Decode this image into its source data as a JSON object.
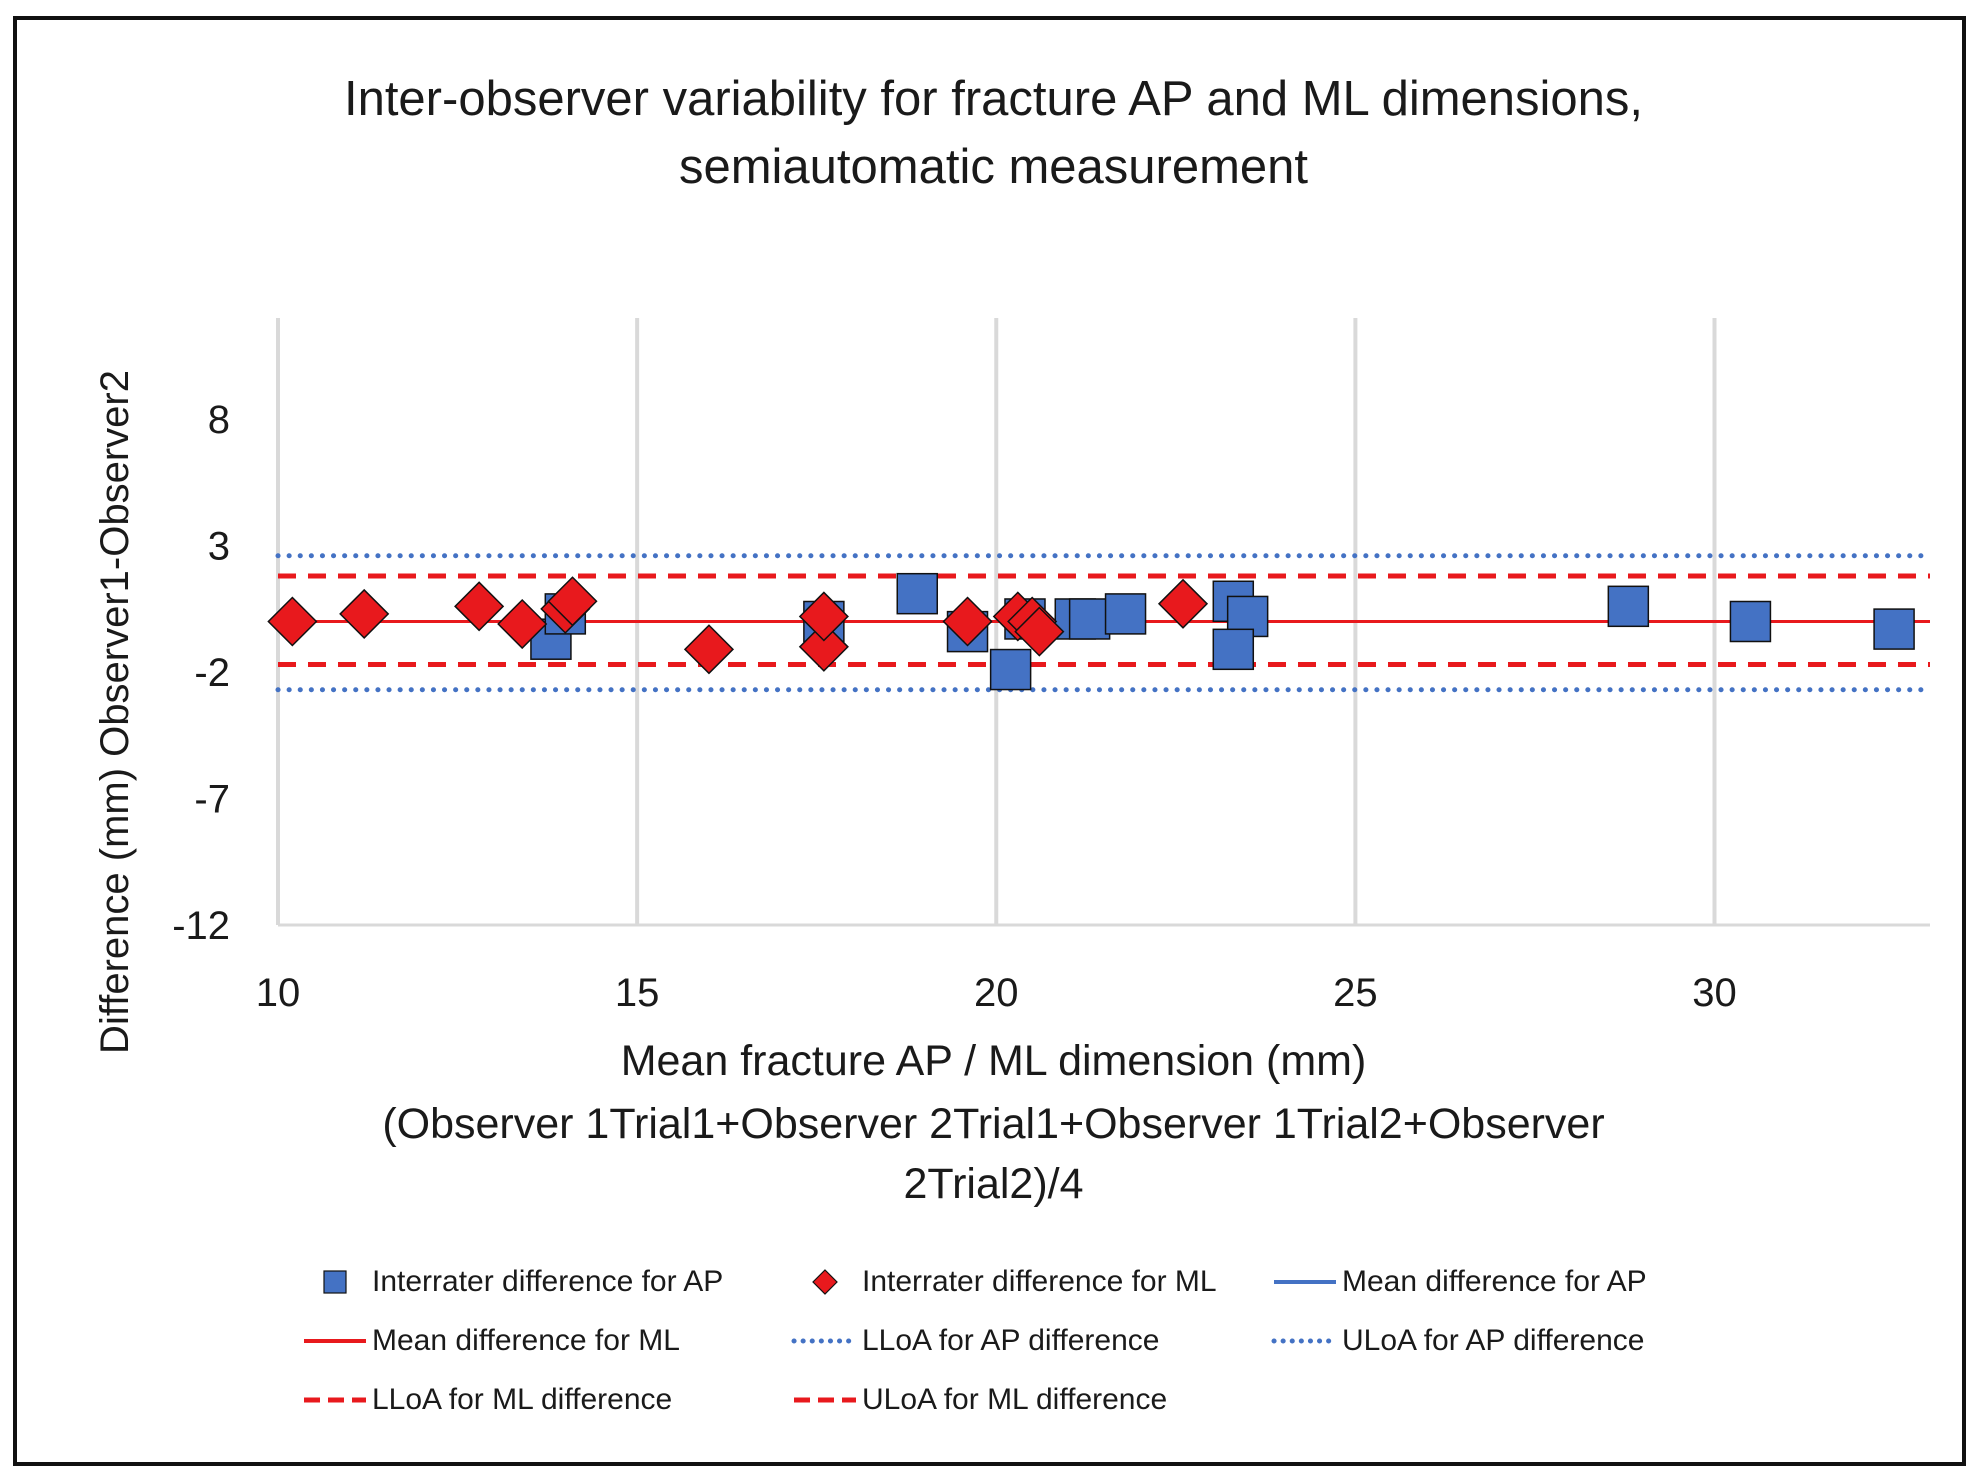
{
  "chart_data": {
    "type": "scatter",
    "title_line1": "Inter-observer variability for fracture AP and ML dimensions,",
    "title_line2": "semiautomatic measurement",
    "xlabel_line1": "Mean fracture AP / ML dimension (mm)",
    "xlabel_line2": "(Observer 1Trial1+Observer 2Trial1+Observer 1Trial2+Observer",
    "xlabel_line3": "2Trial2)/4",
    "ylabel": "Difference (mm) Observer1-Observer2",
    "xlim": [
      10,
      33
    ],
    "ylim": [
      -12,
      12
    ],
    "xticks": [
      10,
      15,
      20,
      25,
      30
    ],
    "yticks": [
      8,
      3,
      -2,
      -7,
      -12
    ],
    "grid": "vertical",
    "colors": {
      "ap": "#4472c4",
      "ml": "#e8191d",
      "grid": "#d9d9d9"
    },
    "series": [
      {
        "name": "Interrater difference for AP",
        "marker": "square",
        "points": [
          [
            13.8,
            -0.7
          ],
          [
            14.0,
            0.3
          ],
          [
            17.6,
            0.0
          ],
          [
            18.9,
            1.1
          ],
          [
            19.6,
            -0.4
          ],
          [
            20.2,
            -1.9
          ],
          [
            20.4,
            0.1
          ],
          [
            21.1,
            0.1
          ],
          [
            21.3,
            0.1
          ],
          [
            21.8,
            0.3
          ],
          [
            23.3,
            0.8
          ],
          [
            23.5,
            0.2
          ],
          [
            23.3,
            -1.1
          ],
          [
            28.8,
            0.6
          ],
          [
            30.5,
            0.0
          ],
          [
            32.5,
            -0.3
          ]
        ]
      },
      {
        "name": "Interrater difference for ML",
        "marker": "diamond",
        "points": [
          [
            10.2,
            0.0
          ],
          [
            11.2,
            0.3
          ],
          [
            12.8,
            0.6
          ],
          [
            13.4,
            -0.1
          ],
          [
            14.0,
            0.5
          ],
          [
            14.1,
            0.8
          ],
          [
            16.0,
            -1.1
          ],
          [
            17.6,
            -1.0
          ],
          [
            17.6,
            0.2
          ],
          [
            19.6,
            0.0
          ],
          [
            20.3,
            0.2
          ],
          [
            20.5,
            0.0
          ],
          [
            20.6,
            -0.4
          ],
          [
            22.6,
            0.7
          ]
        ]
      }
    ],
    "reference_lines": [
      {
        "name": "Mean difference for AP",
        "y": 0.0,
        "style": "solid",
        "color": "#4472c4"
      },
      {
        "name": "Mean difference for ML",
        "y": 0.0,
        "style": "solid",
        "color": "#e8191d"
      },
      {
        "name": "LLoA for AP difference",
        "y": -2.7,
        "style": "dotted",
        "color": "#4472c4"
      },
      {
        "name": "ULoA for AP difference",
        "y": 2.6,
        "style": "dotted",
        "color": "#4472c4"
      },
      {
        "name": "LLoA for ML difference",
        "y": -1.7,
        "style": "dashed",
        "color": "#e8191d"
      },
      {
        "name": "ULoA for ML difference",
        "y": 1.8,
        "style": "dashed",
        "color": "#e8191d"
      }
    ],
    "legend": {
      "position": "bottom",
      "items": [
        {
          "label": "Interrater difference for AP",
          "symbol": "square",
          "color": "#4472c4"
        },
        {
          "label": "Interrater difference for ML",
          "symbol": "diamond",
          "color": "#e8191d"
        },
        {
          "label": "Mean difference for AP",
          "symbol": "solid",
          "color": "#4472c4"
        },
        {
          "label": "Mean difference for ML",
          "symbol": "solid",
          "color": "#e8191d"
        },
        {
          "label": "LLoA for AP difference",
          "symbol": "dotted",
          "color": "#4472c4"
        },
        {
          "label": "ULoA for AP difference",
          "symbol": "dotted",
          "color": "#4472c4"
        },
        {
          "label": "LLoA for ML difference",
          "symbol": "dashed",
          "color": "#e8191d"
        },
        {
          "label": "ULoA for ML difference",
          "symbol": "dashed",
          "color": "#e8191d"
        }
      ]
    }
  }
}
